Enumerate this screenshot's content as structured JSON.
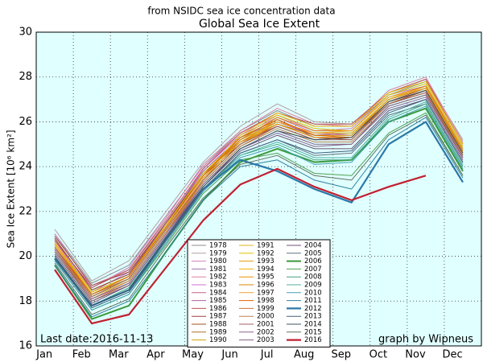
{
  "chart_data": {
    "type": "line",
    "subtitle": "from NSIDC sea ice concentration data",
    "title": "Global Sea Ice Extent",
    "y_label": "Sea Ice Extent [10⁶ km²]",
    "annotations": [
      "Last date:2016-11-13",
      "graph by Wipneus"
    ],
    "categories": [
      "Jan",
      "Feb",
      "Mar",
      "Apr",
      "May",
      "Jun",
      "Jul",
      "Aug",
      "Sep",
      "Oct",
      "Nov",
      "Dec"
    ],
    "ylim": [
      16,
      30
    ],
    "yticks": [
      16,
      18,
      20,
      22,
      24,
      26,
      28,
      30
    ],
    "grid": true,
    "background": "#e0ffff",
    "legend": "lower center",
    "series": [
      {
        "name": "1978",
        "color": "#8c8c8c",
        "linewidth": 1,
        "values": [
          21.0,
          18.8,
          19.6,
          21.8,
          24.0,
          25.6,
          26.5,
          25.8,
          25.8,
          27.2,
          27.8,
          25.0
        ]
      },
      {
        "name": "1979",
        "color": "#b0a0a0",
        "linewidth": 1,
        "values": [
          21.2,
          18.9,
          19.8,
          22.0,
          24.2,
          25.8,
          26.8,
          26.0,
          25.9,
          27.3,
          27.9,
          25.2
        ]
      },
      {
        "name": "1980",
        "color": "#d080c0",
        "linewidth": 1,
        "values": [
          21.0,
          18.6,
          19.5,
          21.8,
          24.0,
          25.5,
          26.3,
          25.6,
          25.7,
          27.2,
          27.6,
          24.9
        ]
      },
      {
        "name": "1981",
        "color": "#a070b0",
        "linewidth": 1,
        "values": [
          20.8,
          18.5,
          19.2,
          21.5,
          23.8,
          25.3,
          26.0,
          25.4,
          25.5,
          27.0,
          27.5,
          24.8
        ]
      },
      {
        "name": "1982",
        "color": "#e080a0",
        "linewidth": 1,
        "values": [
          20.9,
          18.7,
          19.4,
          21.7,
          24.1,
          25.6,
          26.6,
          25.9,
          25.8,
          27.4,
          28.0,
          25.1
        ]
      },
      {
        "name": "1983",
        "color": "#d070d0",
        "linewidth": 1,
        "values": [
          20.7,
          18.4,
          19.3,
          21.4,
          23.9,
          25.4,
          26.2,
          25.5,
          25.4,
          27.0,
          27.6,
          24.9
        ]
      },
      {
        "name": "1984",
        "color": "#c06080",
        "linewidth": 1,
        "values": [
          20.6,
          18.4,
          19.1,
          21.4,
          23.7,
          25.2,
          26.0,
          25.4,
          25.4,
          26.9,
          27.4,
          24.6
        ]
      },
      {
        "name": "1985",
        "color": "#b060a0",
        "linewidth": 1,
        "values": [
          20.8,
          18.5,
          19.2,
          21.5,
          23.8,
          25.3,
          26.1,
          25.3,
          25.3,
          26.8,
          27.4,
          24.7
        ]
      },
      {
        "name": "1986",
        "color": "#c05050",
        "linewidth": 1,
        "values": [
          20.7,
          18.6,
          19.4,
          21.6,
          23.9,
          25.5,
          26.4,
          25.9,
          25.9,
          27.3,
          27.9,
          25.0
        ]
      },
      {
        "name": "1987",
        "color": "#a04040",
        "linewidth": 1,
        "values": [
          20.9,
          18.7,
          19.3,
          21.5,
          23.7,
          25.1,
          25.8,
          25.2,
          25.3,
          26.9,
          27.5,
          24.8
        ]
      },
      {
        "name": "1988",
        "color": "#a05020",
        "linewidth": 1,
        "values": [
          20.8,
          18.5,
          19.2,
          21.4,
          23.6,
          25.0,
          25.9,
          25.3,
          25.2,
          26.8,
          27.4,
          24.6
        ]
      },
      {
        "name": "1989",
        "color": "#b07020",
        "linewidth": 1,
        "values": [
          20.5,
          18.3,
          19.0,
          21.2,
          23.5,
          25.1,
          25.9,
          25.4,
          25.4,
          26.9,
          27.4,
          24.7
        ]
      },
      {
        "name": "1990",
        "color": "#d0a000",
        "linewidth": 1,
        "values": [
          20.6,
          18.4,
          19.1,
          21.3,
          23.6,
          25.2,
          26.0,
          25.5,
          25.5,
          27.0,
          27.5,
          24.7
        ]
      },
      {
        "name": "1991",
        "color": "#e0b020",
        "linewidth": 1,
        "values": [
          20.5,
          18.2,
          18.9,
          21.1,
          23.4,
          25.0,
          26.0,
          25.5,
          25.5,
          27.0,
          27.6,
          24.8
        ]
      },
      {
        "name": "1992",
        "color": "#e0c000",
        "linewidth": 1,
        "values": [
          20.6,
          18.4,
          19.1,
          21.4,
          23.7,
          25.3,
          26.3,
          25.7,
          25.6,
          27.2,
          27.7,
          24.9
        ]
      },
      {
        "name": "1993",
        "color": "#e0a000",
        "linewidth": 1,
        "values": [
          20.4,
          18.2,
          19.0,
          21.2,
          23.5,
          25.1,
          26.1,
          25.4,
          25.4,
          27.0,
          27.5,
          24.6
        ]
      },
      {
        "name": "1994",
        "color": "#f0b000",
        "linewidth": 1,
        "values": [
          20.6,
          18.3,
          19.1,
          21.3,
          23.6,
          25.4,
          26.4,
          25.8,
          25.8,
          27.3,
          27.8,
          25.0
        ]
      },
      {
        "name": "1995",
        "color": "#f09000",
        "linewidth": 1,
        "values": [
          20.4,
          18.1,
          18.9,
          21.1,
          23.4,
          25.0,
          25.9,
          25.3,
          25.3,
          26.9,
          27.4,
          24.5
        ]
      },
      {
        "name": "1996",
        "color": "#e08000",
        "linewidth": 1,
        "values": [
          20.3,
          18.0,
          18.8,
          21.0,
          23.4,
          25.2,
          26.2,
          25.6,
          25.6,
          27.1,
          27.6,
          24.7
        ]
      },
      {
        "name": "1997",
        "color": "#f0a030",
        "linewidth": 1,
        "values": [
          20.5,
          18.2,
          19.0,
          21.2,
          23.5,
          25.1,
          26.0,
          25.5,
          25.6,
          27.1,
          27.5,
          24.6
        ]
      },
      {
        "name": "1998",
        "color": "#e06000",
        "linewidth": 1,
        "values": [
          20.4,
          18.3,
          19.1,
          21.3,
          23.6,
          25.3,
          26.1,
          25.4,
          25.3,
          26.8,
          27.3,
          24.5
        ]
      },
      {
        "name": "1999",
        "color": "#d07030",
        "linewidth": 1,
        "values": [
          20.2,
          18.0,
          18.8,
          21.0,
          23.3,
          24.9,
          25.8,
          25.2,
          25.3,
          26.8,
          27.3,
          24.4
        ]
      },
      {
        "name": "2000",
        "color": "#c08050",
        "linewidth": 1,
        "values": [
          20.3,
          18.1,
          18.9,
          21.1,
          23.3,
          24.9,
          25.7,
          25.1,
          25.1,
          26.7,
          27.2,
          24.4
        ]
      },
      {
        "name": "2001",
        "color": "#a06060",
        "linewidth": 1,
        "values": [
          20.4,
          18.2,
          19.0,
          21.2,
          23.4,
          25.0,
          25.8,
          25.2,
          25.2,
          26.8,
          27.3,
          24.5
        ]
      },
      {
        "name": "2002",
        "color": "#906090",
        "linewidth": 1,
        "values": [
          20.3,
          18.1,
          18.8,
          21.0,
          23.2,
          24.8,
          25.5,
          24.9,
          25.0,
          26.6,
          27.1,
          24.3
        ]
      },
      {
        "name": "2003",
        "color": "#806080",
        "linewidth": 1,
        "values": [
          20.2,
          18.0,
          18.7,
          20.9,
          23.2,
          24.8,
          25.6,
          25.0,
          25.0,
          26.7,
          27.2,
          24.4
        ]
      },
      {
        "name": "2004",
        "color": "#705070",
        "linewidth": 1,
        "values": [
          20.1,
          17.9,
          18.7,
          20.9,
          23.1,
          24.7,
          25.4,
          24.8,
          24.8,
          26.5,
          27.0,
          24.2
        ]
      },
      {
        "name": "2005",
        "color": "#607080",
        "linewidth": 1,
        "values": [
          20.0,
          17.8,
          18.5,
          20.7,
          22.9,
          24.6,
          25.2,
          24.5,
          24.6,
          26.3,
          26.8,
          24.0
        ]
      },
      {
        "name": "2006",
        "color": "#3a9a3a",
        "linewidth": 2,
        "values": [
          19.6,
          17.2,
          17.8,
          20.2,
          22.5,
          24.2,
          24.8,
          24.2,
          24.3,
          26.0,
          26.6,
          23.8
        ]
      },
      {
        "name": "2007",
        "color": "#50a050",
        "linewidth": 1,
        "values": [
          19.8,
          17.6,
          18.3,
          20.5,
          22.8,
          24.3,
          24.6,
          23.7,
          23.6,
          25.5,
          26.4,
          23.6
        ]
      },
      {
        "name": "2008",
        "color": "#40a080",
        "linewidth": 1,
        "values": [
          20.0,
          17.8,
          18.6,
          20.8,
          23.0,
          24.5,
          25.0,
          24.3,
          24.3,
          26.1,
          26.8,
          24.0
        ]
      },
      {
        "name": "2009",
        "color": "#50b0a0",
        "linewidth": 1,
        "values": [
          19.9,
          17.7,
          18.4,
          20.6,
          22.9,
          24.5,
          25.1,
          24.4,
          24.4,
          26.2,
          26.9,
          24.1
        ]
      },
      {
        "name": "2010",
        "color": "#40a0b0",
        "linewidth": 1,
        "values": [
          19.8,
          17.6,
          18.3,
          20.6,
          22.9,
          24.4,
          24.9,
          24.1,
          24.2,
          26.0,
          26.7,
          23.9
        ]
      },
      {
        "name": "2011",
        "color": "#3080a0",
        "linewidth": 1,
        "values": [
          19.6,
          17.3,
          18.0,
          20.2,
          22.5,
          24.0,
          24.3,
          23.4,
          23.0,
          25.2,
          26.2,
          23.5
        ]
      },
      {
        "name": "2012",
        "color": "#2a78a8",
        "linewidth": 2.2,
        "values": [
          19.9,
          17.8,
          18.5,
          20.8,
          23.0,
          24.3,
          23.8,
          23.0,
          22.4,
          25.0,
          26.0,
          23.3
        ]
      },
      {
        "name": "2013",
        "color": "#406080",
        "linewidth": 1,
        "values": [
          19.9,
          17.7,
          18.4,
          20.7,
          23.0,
          24.6,
          25.2,
          24.6,
          24.7,
          26.4,
          27.0,
          24.2
        ]
      },
      {
        "name": "2014",
        "color": "#405060",
        "linewidth": 1,
        "values": [
          20.0,
          17.8,
          18.5,
          20.8,
          23.1,
          24.8,
          25.6,
          25.2,
          25.3,
          26.9,
          27.4,
          24.6
        ]
      },
      {
        "name": "2015",
        "color": "#607060",
        "linewidth": 1,
        "values": [
          19.7,
          17.4,
          18.1,
          20.4,
          22.6,
          24.1,
          24.5,
          23.6,
          23.4,
          25.4,
          26.3,
          23.6
        ]
      },
      {
        "name": "2016",
        "color": "#c02030",
        "linewidth": 2.2,
        "values": [
          19.4,
          17.0,
          17.4,
          19.5,
          21.6,
          23.2,
          23.9,
          23.1,
          22.5,
          23.1,
          23.6,
          null
        ]
      }
    ]
  }
}
